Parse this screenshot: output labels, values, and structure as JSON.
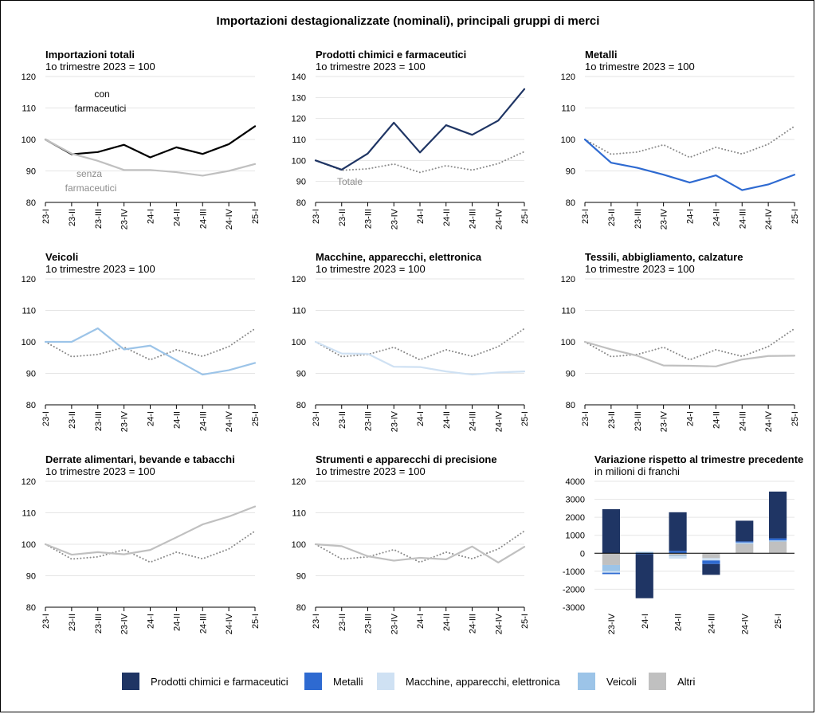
{
  "title": "Importazioni destagionalizzate (nominali), principali gruppi di merci",
  "index_subtitle": "1o trimestre 2023 = 100",
  "colors": {
    "chem": "#1f3564",
    "metals": "#2e6ad1",
    "machines": "#cfe1f3",
    "vehicles": "#9cc4e8",
    "other": "#c0c0c0",
    "total": "#000000",
    "dotted": "#8c8c8c",
    "grid": "#e5e5e5"
  },
  "legend": [
    {
      "label": "Prodotti chimici e farmaceutici",
      "color": "#1f3564"
    },
    {
      "label": "Metalli",
      "color": "#2e6ad1"
    },
    {
      "label": "Macchine, apparecchi, elettronica",
      "color": "#cfe1f3"
    },
    {
      "label": "Veicoli",
      "color": "#9cc4e8"
    },
    {
      "label": "Altri",
      "color": "#c0c0c0"
    }
  ],
  "chart_data": [
    {
      "type": "line",
      "title": "Importazioni totali",
      "subtitle": "1o trimestre 2023 = 100",
      "categories": [
        "23-I",
        "23-II",
        "23-III",
        "23-IV",
        "24-I",
        "24-II",
        "24-III",
        "24-IV",
        "25-I"
      ],
      "ylim": [
        80,
        120
      ],
      "yticks": [
        80,
        90,
        100,
        110,
        120
      ],
      "series": [
        {
          "name": "con farmaceutici",
          "values": [
            100,
            95.3,
            96,
            98.3,
            94.3,
            97.5,
            95.4,
            98.5,
            104.2
          ],
          "color": "#000000",
          "style": "solid"
        },
        {
          "name": "senza farmaceutici",
          "values": [
            100,
            95.5,
            93.2,
            90.3,
            90.3,
            89.6,
            88.5,
            90,
            92.2
          ],
          "color": "#c0c0c0",
          "style": "solid"
        }
      ],
      "annotations": [
        {
          "text": "con",
          "series": 0
        },
        {
          "text": "farmaceutici",
          "series": 0
        },
        {
          "text": "senza",
          "series": 1
        },
        {
          "text": "farmaceutici",
          "series": 1
        }
      ]
    },
    {
      "type": "line",
      "title": "Prodotti chimici e farmaceutici",
      "subtitle": "1o trimestre 2023 = 100",
      "categories": [
        "23-I",
        "23-II",
        "23-III",
        "23-IV",
        "24-I",
        "24-II",
        "24-III",
        "24-IV",
        "25-I"
      ],
      "ylim": [
        80,
        140
      ],
      "yticks": [
        80,
        90,
        100,
        110,
        120,
        130,
        140
      ],
      "series": [
        {
          "name": "Totale",
          "values": [
            100,
            95.3,
            96,
            98.3,
            94.3,
            97.5,
            95.4,
            98.5,
            104.2
          ],
          "color": "#8c8c8c",
          "style": "dotted"
        },
        {
          "name": "Prodotti chimici e farmaceutici",
          "values": [
            100,
            95.6,
            103.3,
            118,
            103.8,
            116.8,
            112.2,
            119,
            134
          ],
          "color": "#1f3564",
          "style": "solid"
        }
      ],
      "annotations": [
        {
          "text": "Totale",
          "series": 0
        }
      ]
    },
    {
      "type": "line",
      "title": "Metalli",
      "subtitle": "1o trimestre 2023 = 100",
      "categories": [
        "23-I",
        "23-II",
        "23-III",
        "23-IV",
        "24-I",
        "24-II",
        "24-III",
        "24-IV",
        "25-I"
      ],
      "ylim": [
        80,
        120
      ],
      "yticks": [
        80,
        90,
        100,
        110,
        120
      ],
      "series": [
        {
          "name": "Totale",
          "values": [
            100,
            95.3,
            96,
            98.3,
            94.3,
            97.5,
            95.4,
            98.5,
            104.2
          ],
          "color": "#8c8c8c",
          "style": "dotted"
        },
        {
          "name": "Metalli",
          "values": [
            100,
            92.6,
            91,
            88.8,
            86.3,
            88.6,
            83.9,
            85.7,
            88.8
          ],
          "color": "#2e6ad1",
          "style": "solid"
        }
      ]
    },
    {
      "type": "line",
      "title": "Veicoli",
      "subtitle": "1o trimestre 2023 = 100",
      "categories": [
        "23-I",
        "23-II",
        "23-III",
        "23-IV",
        "24-I",
        "24-II",
        "24-III",
        "24-IV",
        "25-I"
      ],
      "ylim": [
        80,
        120
      ],
      "yticks": [
        80,
        90,
        100,
        110,
        120
      ],
      "series": [
        {
          "name": "Totale",
          "values": [
            100,
            95.3,
            96,
            98.3,
            94.3,
            97.5,
            95.4,
            98.5,
            104.2
          ],
          "color": "#8c8c8c",
          "style": "dotted"
        },
        {
          "name": "Veicoli",
          "values": [
            100,
            100,
            104.3,
            97.6,
            98.8,
            94.2,
            89.6,
            91,
            93.3
          ],
          "color": "#9cc4e8",
          "style": "solid"
        }
      ]
    },
    {
      "type": "line",
      "title": "Macchine, apparecchi, elettronica",
      "subtitle": "1o trimestre 2023 = 100",
      "categories": [
        "23-I",
        "23-II",
        "23-III",
        "23-IV",
        "24-I",
        "24-II",
        "24-III",
        "24-IV",
        "25-I"
      ],
      "ylim": [
        80,
        120
      ],
      "yticks": [
        80,
        90,
        100,
        110,
        120
      ],
      "series": [
        {
          "name": "Totale",
          "values": [
            100,
            95.3,
            96,
            98.3,
            94.3,
            97.5,
            95.4,
            98.5,
            104.2
          ],
          "color": "#8c8c8c",
          "style": "dotted"
        },
        {
          "name": "Macchine, apparecchi, elettronica",
          "values": [
            100,
            96.3,
            96.2,
            92.1,
            92,
            90.6,
            89.6,
            90.3,
            90.6
          ],
          "color": "#cfe1f3",
          "style": "solid"
        }
      ]
    },
    {
      "type": "line",
      "title": "Tessili, abbigliamento, calzature",
      "subtitle": "1o trimestre 2023 = 100",
      "categories": [
        "23-I",
        "23-II",
        "23-III",
        "23-IV",
        "24-I",
        "24-II",
        "24-III",
        "24-IV",
        "25-I"
      ],
      "ylim": [
        80,
        120
      ],
      "yticks": [
        80,
        90,
        100,
        110,
        120
      ],
      "series": [
        {
          "name": "Totale",
          "values": [
            100,
            95.3,
            96,
            98.3,
            94.3,
            97.5,
            95.4,
            98.5,
            104.2
          ],
          "color": "#8c8c8c",
          "style": "dotted"
        },
        {
          "name": "Tessili, abbigliamento, calzature",
          "values": [
            100,
            97.6,
            95.6,
            92.5,
            92.4,
            92.2,
            94.4,
            95.5,
            95.6
          ],
          "color": "#c0c0c0",
          "style": "solid"
        }
      ]
    },
    {
      "type": "line",
      "title": "Derrate alimentari, bevande e tabacchi",
      "subtitle": "1o trimestre 2023 = 100",
      "categories": [
        "23-I",
        "23-II",
        "23-III",
        "23-IV",
        "24-I",
        "24-II",
        "24-III",
        "24-IV",
        "25-I"
      ],
      "ylim": [
        80,
        120
      ],
      "yticks": [
        80,
        90,
        100,
        110,
        120
      ],
      "series": [
        {
          "name": "Totale",
          "values": [
            100,
            95.3,
            96,
            98.3,
            94.3,
            97.5,
            95.4,
            98.5,
            104.2
          ],
          "color": "#8c8c8c",
          "style": "dotted"
        },
        {
          "name": "Derrate alimentari, bevande e tabacchi",
          "values": [
            100,
            96.7,
            97.5,
            96.8,
            98.2,
            102.2,
            106.3,
            108.8,
            112
          ],
          "color": "#c0c0c0",
          "style": "solid"
        }
      ]
    },
    {
      "type": "line",
      "title": "Strumenti e apparecchi di precisione",
      "subtitle": "1o trimestre 2023 = 100",
      "categories": [
        "23-I",
        "23-II",
        "23-III",
        "23-IV",
        "24-I",
        "24-II",
        "24-III",
        "24-IV",
        "25-I"
      ],
      "ylim": [
        80,
        120
      ],
      "yticks": [
        80,
        90,
        100,
        110,
        120
      ],
      "series": [
        {
          "name": "Totale",
          "values": [
            100,
            95.3,
            96,
            98.3,
            94.3,
            97.5,
            95.4,
            98.5,
            104.2
          ],
          "color": "#8c8c8c",
          "style": "dotted"
        },
        {
          "name": "Strumenti e apparecchi di precisione",
          "values": [
            100,
            99.4,
            96.2,
            94.8,
            95.7,
            95.2,
            99.3,
            94.2,
            99.2
          ],
          "color": "#c0c0c0",
          "style": "solid"
        }
      ]
    },
    {
      "type": "bar",
      "stacked": true,
      "title": "Variazione rispetto al trimestre precedente",
      "subtitle": "in milioni di franchi",
      "categories": [
        "23-IV",
        "24-I",
        "24-II",
        "24-III",
        "24-IV",
        "25-I"
      ],
      "ylim": [
        -3000,
        4000
      ],
      "yticks": [
        -3000,
        -2000,
        -1000,
        0,
        1000,
        2000,
        3000,
        4000
      ],
      "series": [
        {
          "name": "Altri",
          "values": [
            -650,
            0,
            -120,
            -270,
            520,
            650
          ],
          "color": "#c0c0c0"
        },
        {
          "name": "Veicoli",
          "values": [
            -350,
            80,
            -50,
            0,
            50,
            40
          ],
          "color": "#9cc4e8"
        },
        {
          "name": "Macchine, apparecchi, elettronica",
          "values": [
            -80,
            0,
            -130,
            -130,
            30,
            20
          ],
          "color": "#cfe1f3"
        },
        {
          "name": "Metalli",
          "values": [
            -80,
            -50,
            130,
            -200,
            60,
            120
          ],
          "color": "#2e6ad1"
        },
        {
          "name": "Prodotti chimici e farmaceutici",
          "values": [
            2450,
            -2450,
            2150,
            -600,
            1150,
            2600
          ],
          "color": "#1f3564"
        }
      ]
    }
  ]
}
